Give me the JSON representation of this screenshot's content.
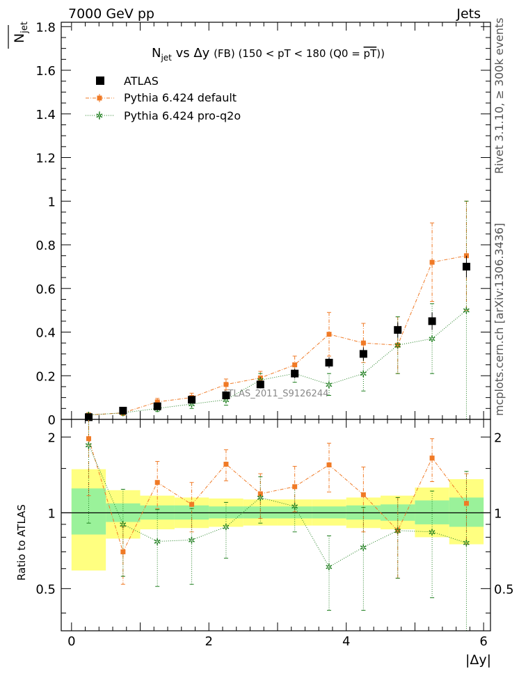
{
  "header": {
    "energy_label": "7000 GeV pp",
    "group_label": "Jets"
  },
  "side_labels": {
    "rivet": "Rivet 3.1.10, ≥ 300k events",
    "mcplots": "mcplots.cern.ch [arXiv:1306.3436]"
  },
  "chart_data": {
    "type": "scatter",
    "title": "N_jet vs Δy (FB) (150 < pT < 180 (Q0 = pT))",
    "title_parts": {
      "n": "N",
      "jet_sub": "jet",
      "vs": " vs Δy ",
      "fb": "(FB)",
      "range": " (150 < pT < 180 (Q0 = ",
      "pt_bar": "pT",
      "close": "))"
    },
    "ylabel_main": {
      "n": "N",
      "sub": "jet"
    },
    "ylabel_ratio": "Ratio to ATLAS",
    "xlabel": "|Δy|",
    "analysis_label": "ATLAS_2011_S9126244",
    "x_range": [
      -0.15,
      6.1
    ],
    "main_ylim": [
      0,
      1.82
    ],
    "ratio_ylim": [
      0.34,
      2.35
    ],
    "x_ticks": [
      "0",
      "2",
      "4",
      "6"
    ],
    "main_y_ticks": [
      "0",
      "0.2",
      "0.4",
      "0.6",
      "0.8",
      "1",
      "1.2",
      "1.4",
      "1.6",
      "1.8"
    ],
    "ratio_y_ticks": [
      "0.5",
      "1",
      "2"
    ],
    "x": [
      0.25,
      0.75,
      1.25,
      1.75,
      2.25,
      2.75,
      3.25,
      3.75,
      4.25,
      4.75,
      5.25,
      5.75
    ],
    "bin_edges": [
      0.0,
      0.5,
      1.0,
      1.5,
      2.0,
      2.5,
      3.0,
      3.5,
      4.0,
      4.5,
      5.0,
      5.5,
      6.0
    ],
    "legend_position": "top-left",
    "series": [
      {
        "name": "ATLAS",
        "color": "#000000",
        "marker": "square",
        "y": [
          0.01,
          0.04,
          0.06,
          0.09,
          0.11,
          0.16,
          0.21,
          0.26,
          0.3,
          0.41,
          0.45,
          0.7
        ],
        "err": [
          0.005,
          0.008,
          0.01,
          0.012,
          0.014,
          0.018,
          0.022,
          0.025,
          0.03,
          0.035,
          0.04,
          0.05
        ]
      },
      {
        "name": "Pythia 6.424 default",
        "color": "#f07a26",
        "marker": "square-small",
        "y": [
          0.02,
          0.03,
          0.08,
          0.1,
          0.16,
          0.19,
          0.25,
          0.39,
          0.35,
          0.34,
          0.72,
          0.75
        ],
        "err": [
          0.008,
          0.012,
          0.016,
          0.02,
          0.025,
          0.03,
          0.04,
          0.1,
          0.09,
          0.13,
          0.18,
          0.25
        ]
      },
      {
        "name": "Pythia 6.424 pro-q2o",
        "color": "#1d7d1d",
        "marker": "star",
        "y": [
          0.02,
          0.03,
          0.05,
          0.07,
          0.09,
          0.18,
          0.21,
          0.16,
          0.21,
          0.34,
          0.37,
          0.5
        ],
        "err": [
          0.006,
          0.01,
          0.014,
          0.02,
          0.025,
          0.03,
          0.04,
          0.05,
          0.08,
          0.13,
          0.16,
          0.5
        ]
      }
    ],
    "ratio": {
      "default": {
        "y": [
          1.97,
          0.7,
          1.32,
          1.08,
          1.56,
          1.19,
          1.27,
          1.55,
          1.18,
          0.85,
          1.65,
          1.09
        ],
        "err": [
          0.8,
          0.18,
          0.28,
          0.24,
          0.22,
          0.24,
          0.26,
          0.34,
          0.34,
          0.3,
          0.32,
          0.34
        ]
      },
      "pro_q2o": {
        "y": [
          1.86,
          0.9,
          0.77,
          0.78,
          0.88,
          1.15,
          1.06,
          0.61,
          0.73,
          0.85,
          0.84,
          0.76
        ],
        "err": [
          0.95,
          0.34,
          0.26,
          0.26,
          0.22,
          0.24,
          0.22,
          0.2,
          0.32,
          0.3,
          0.38,
          0.7
        ]
      },
      "band_inner": [
        [
          0.82,
          1.25
        ],
        [
          0.92,
          1.09
        ],
        [
          0.94,
          1.07
        ],
        [
          0.94,
          1.07
        ],
        [
          0.95,
          1.06
        ],
        [
          0.95,
          1.06
        ],
        [
          0.95,
          1.06
        ],
        [
          0.95,
          1.06
        ],
        [
          0.94,
          1.07
        ],
        [
          0.93,
          1.08
        ],
        [
          0.9,
          1.12
        ],
        [
          0.88,
          1.15
        ]
      ],
      "band_outer": [
        [
          0.59,
          1.49
        ],
        [
          0.79,
          1.23
        ],
        [
          0.86,
          1.17
        ],
        [
          0.87,
          1.15
        ],
        [
          0.88,
          1.14
        ],
        [
          0.89,
          1.13
        ],
        [
          0.89,
          1.13
        ],
        [
          0.89,
          1.13
        ],
        [
          0.87,
          1.15
        ],
        [
          0.86,
          1.17
        ],
        [
          0.8,
          1.26
        ],
        [
          0.75,
          1.36
        ]
      ],
      "band_colors": {
        "inner": "#9af29a",
        "outer": "#ffff80"
      }
    }
  }
}
